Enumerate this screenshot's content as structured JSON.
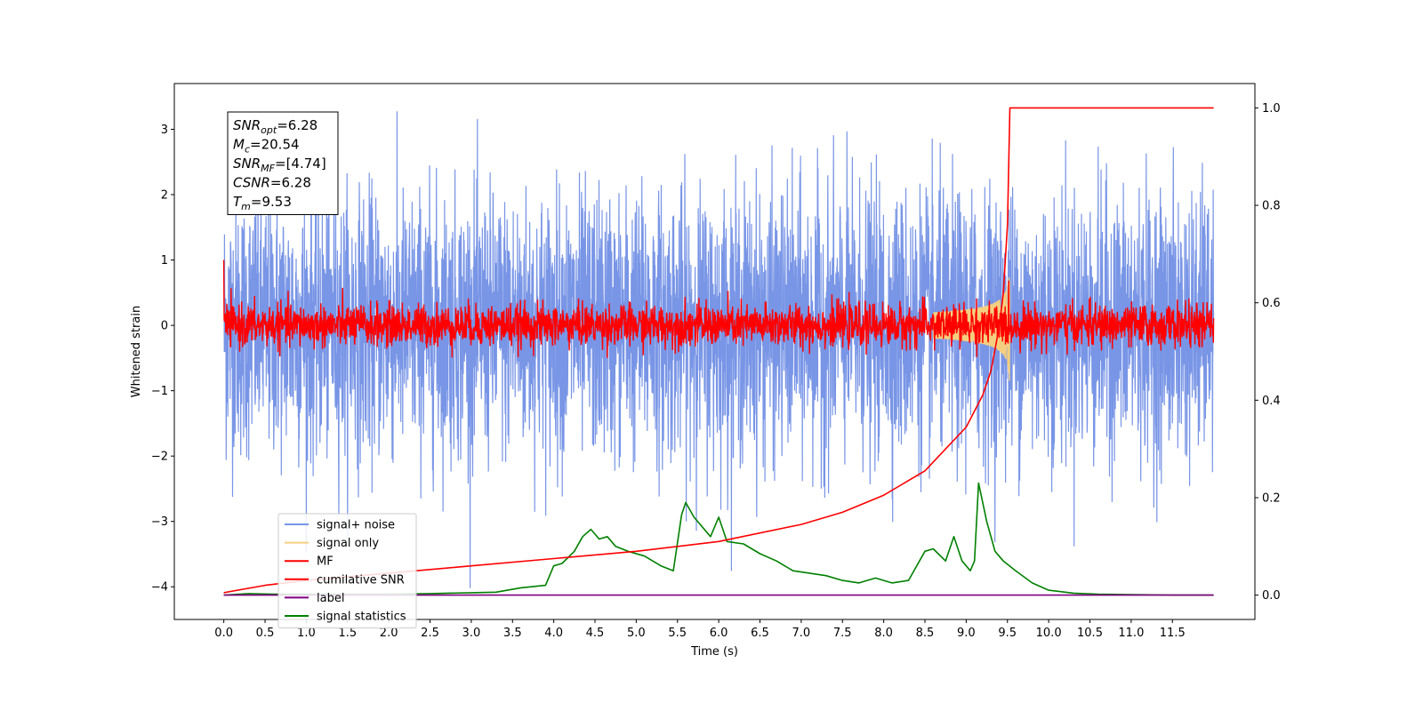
{
  "chart_data": {
    "type": "line",
    "title": "",
    "xlabel": "Time (s)",
    "ylabel": "Whitened strain",
    "xlim": [
      -0.6,
      12.5
    ],
    "ylim": [
      -4.5,
      3.7
    ],
    "y2lim": [
      -0.05,
      1.05
    ],
    "x_ticks": [
      "0.0",
      "0.5",
      "1.0",
      "1.5",
      "2.0",
      "2.5",
      "3.0",
      "3.5",
      "4.0",
      "4.5",
      "5.0",
      "5.5",
      "6.0",
      "6.5",
      "7.0",
      "7.5",
      "8.0",
      "8.5",
      "9.0",
      "9.5",
      "10.0",
      "10.5",
      "11.0",
      "11.5"
    ],
    "y_ticks": [
      "3",
      "2",
      "1",
      "0",
      "−1",
      "−2",
      "−3",
      "−4"
    ],
    "y2_ticks": [
      "1.0",
      "0.8",
      "0.6",
      "0.4",
      "0.2",
      "0.0"
    ],
    "grid": false,
    "legend_position": "lower-left",
    "annotation": {
      "lines": [
        {
          "base": "SNR",
          "sub": "opt",
          "value": "=6.28"
        },
        {
          "base": "M",
          "sub": "c",
          "value": "=20.54"
        },
        {
          "base": "SNR",
          "sub": "MF",
          "value": "=[4.74]"
        },
        {
          "base": "CSNR",
          "sub": "",
          "value": "=6.28"
        },
        {
          "base": "T",
          "sub": "m",
          "value": "=9.53"
        }
      ]
    },
    "series": [
      {
        "name": "signal+ noise",
        "color": "#7895e6",
        "axis": "left",
        "description_values": {
          "std": 1.0,
          "x_start": 0.0,
          "x_end": 12.0
        }
      },
      {
        "name": "signal only",
        "color": "#f5cf80",
        "axis": "left",
        "chirp_end": 9.53,
        "peak_amplitude": 1.1
      },
      {
        "name": "MF",
        "color": "#ff0000",
        "axis": "left",
        "std": 0.16
      },
      {
        "name": "cumilative SNR",
        "color": "#ff0000",
        "axis": "right",
        "x": [
          0.0,
          0.5,
          1.0,
          2.0,
          3.0,
          4.0,
          5.0,
          6.0,
          7.0,
          7.5,
          8.0,
          8.5,
          9.0,
          9.2,
          9.3,
          9.4,
          9.45,
          9.5,
          9.53,
          12.0
        ],
        "values": [
          0.005,
          0.02,
          0.03,
          0.045,
          0.06,
          0.075,
          0.09,
          0.11,
          0.145,
          0.17,
          0.205,
          0.255,
          0.345,
          0.41,
          0.46,
          0.55,
          0.62,
          0.76,
          1.0,
          1.0
        ]
      },
      {
        "name": "label",
        "color": "#800080",
        "axis": "right",
        "x": [
          0.0,
          12.0
        ],
        "values": [
          0.0,
          0.0
        ]
      },
      {
        "name": "signal statistics",
        "color": "#008000",
        "axis": "right",
        "x": [
          0.0,
          0.3,
          0.6,
          1.0,
          1.5,
          2.0,
          2.5,
          3.0,
          3.3,
          3.6,
          3.9,
          4.0,
          4.1,
          4.25,
          4.35,
          4.45,
          4.55,
          4.65,
          4.75,
          4.9,
          5.1,
          5.3,
          5.45,
          5.55,
          5.6,
          5.7,
          5.9,
          6.0,
          6.1,
          6.3,
          6.5,
          6.7,
          6.9,
          7.1,
          7.3,
          7.5,
          7.7,
          7.9,
          8.1,
          8.3,
          8.5,
          8.6,
          8.75,
          8.85,
          8.95,
          9.05,
          9.1,
          9.15,
          9.25,
          9.35,
          9.45,
          9.6,
          9.8,
          10.0,
          10.3,
          10.6,
          11.0,
          11.5,
          12.0
        ],
        "values": [
          0.0,
          0.003,
          0.002,
          0.002,
          0.002,
          0.002,
          0.003,
          0.005,
          0.006,
          0.015,
          0.02,
          0.06,
          0.065,
          0.09,
          0.12,
          0.135,
          0.115,
          0.12,
          0.1,
          0.09,
          0.08,
          0.06,
          0.05,
          0.165,
          0.19,
          0.16,
          0.12,
          0.16,
          0.11,
          0.105,
          0.085,
          0.07,
          0.05,
          0.045,
          0.04,
          0.03,
          0.025,
          0.035,
          0.025,
          0.03,
          0.09,
          0.095,
          0.07,
          0.12,
          0.07,
          0.05,
          0.07,
          0.23,
          0.15,
          0.09,
          0.07,
          0.05,
          0.025,
          0.01,
          0.004,
          0.002,
          0.001,
          0.0,
          0.0
        ]
      }
    ]
  }
}
